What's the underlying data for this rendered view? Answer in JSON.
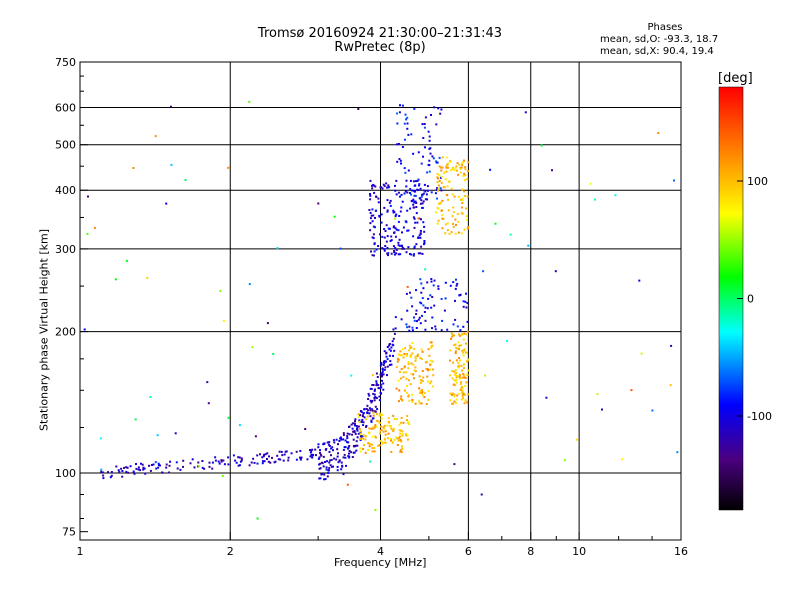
{
  "header": {
    "title_line1": "Tromsø 20160924 21:30:00–21:31:43",
    "title_line2": "RwPretec (8p)",
    "phases_title": "Phases",
    "phases_O": "mean, sd,O: -93.3, 18.7",
    "phases_X": "mean, sd,X: 90.4, 19.4"
  },
  "chart_data": {
    "type": "scatter",
    "title": "Tromsø 20160924 21:30:00–21:31:43",
    "subtitle": "RwPretec (8p)",
    "xlabel": "Frequency [MHz]",
    "ylabel": "Stationary phase Virtual Height [km]",
    "xscale": "log",
    "yscale": "log",
    "xlim": [
      1,
      16
    ],
    "ylim": [
      72,
      750
    ],
    "xticks": [
      1,
      2,
      4,
      6,
      8,
      10,
      16
    ],
    "xtick_labels": [
      "1",
      "2",
      "4",
      "6",
      "8",
      "10",
      "16"
    ],
    "yticks": [
      75,
      100,
      200,
      300,
      400,
      500,
      600,
      750
    ],
    "ytick_labels": [
      "75",
      "100",
      "200",
      "300",
      "400",
      "500",
      "600",
      "750"
    ],
    "grid": true,
    "colorbar": {
      "label": "[deg]",
      "min": -180,
      "max": 180,
      "ticks": [
        100,
        0,
        -100
      ],
      "tick_labels": [
        "100",
        "0",
        "-100"
      ]
    },
    "clusters": [
      {
        "name": "low-trace",
        "x_range": [
          1.1,
          3.0
        ],
        "y_range": [
          98,
          112
        ],
        "phase_deg": -110,
        "n": 140
      },
      {
        "name": "rise-O",
        "x_range": [
          3.0,
          4.3
        ],
        "y_range": [
          105,
          200
        ],
        "phase_deg": -110,
        "n": 260
      },
      {
        "name": "F-layer-O",
        "x_range": [
          3.8,
          4.9
        ],
        "y_range": [
          290,
          420
        ],
        "phase_deg": -105,
        "n": 200
      },
      {
        "name": "F-high-O",
        "x_range": [
          4.3,
          5.3
        ],
        "y_range": [
          380,
          610
        ],
        "phase_deg": -90,
        "n": 90
      },
      {
        "name": "upper-cluster-X",
        "x_range": [
          5.2,
          6.0
        ],
        "y_range": [
          320,
          470
        ],
        "phase_deg": 100,
        "n": 120
      },
      {
        "name": "mid-right-O",
        "x_range": [
          4.5,
          6.0
        ],
        "y_range": [
          200,
          260
        ],
        "phase_deg": -95,
        "n": 80
      },
      {
        "name": "low-X",
        "x_range": [
          3.6,
          4.6
        ],
        "y_range": [
          110,
          135
        ],
        "phase_deg": 100,
        "n": 130
      },
      {
        "name": "mid-X",
        "x_range": [
          4.3,
          5.1
        ],
        "y_range": [
          140,
          190
        ],
        "phase_deg": 105,
        "n": 120
      },
      {
        "name": "right-X",
        "x_range": [
          5.5,
          6.0
        ],
        "y_range": [
          140,
          200
        ],
        "phase_deg": 100,
        "n": 110
      },
      {
        "name": "sparse",
        "x_range": [
          1.0,
          16.0
        ],
        "y_range": [
          80,
          640
        ],
        "phase_deg": 0,
        "n": 90
      }
    ]
  }
}
